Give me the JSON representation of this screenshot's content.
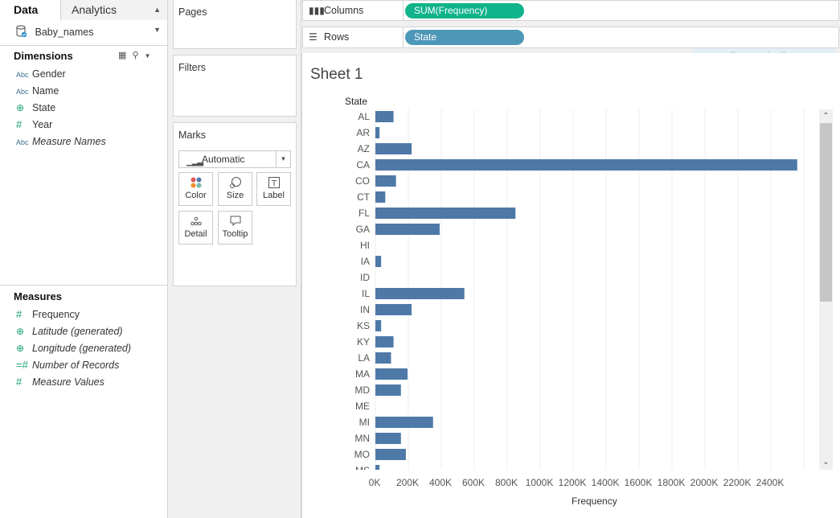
{
  "left_pane": {
    "tabs": {
      "data": "Data",
      "analytics": "Analytics"
    },
    "datasource": "Baby_names",
    "dimensions_title": "Dimensions",
    "dimensions": [
      {
        "type": "Abc",
        "label": "Gender",
        "italic": false
      },
      {
        "type": "Abc",
        "label": "Name",
        "italic": false
      },
      {
        "type": "globe",
        "label": "State",
        "italic": false
      },
      {
        "type": "#",
        "label": "Year",
        "italic": false
      },
      {
        "type": "Abc",
        "label": "Measure Names",
        "italic": true
      }
    ],
    "measures_title": "Measures",
    "measures": [
      {
        "type": "#",
        "label": "Frequency",
        "italic": false
      },
      {
        "type": "globe",
        "label": "Latitude (generated)",
        "italic": true
      },
      {
        "type": "globe",
        "label": "Longitude (generated)",
        "italic": true
      },
      {
        "type": "=#",
        "label": "Number of Records",
        "italic": true
      },
      {
        "type": "#",
        "label": "Measure Values",
        "italic": true
      }
    ]
  },
  "cards": {
    "pages": "Pages",
    "filters": "Filters",
    "marks": "Marks",
    "mark_type": "Automatic",
    "buttons": {
      "color": "Color",
      "size": "Size",
      "label": "Label",
      "detail": "Detail",
      "tooltip": "Tooltip"
    }
  },
  "shelves": {
    "columns_label": "Columns",
    "columns_pill": "SUM(Frequency)",
    "rows_label": "Rows",
    "rows_pill": "State"
  },
  "snip_overlay": "Rectangular Snip",
  "sheet": {
    "title": "Sheet 1"
  },
  "colors": {
    "bar": "#4e79a7",
    "columns_pill": "#10b38a",
    "rows_pill": "#4d97b8"
  },
  "chart_data": {
    "type": "bar",
    "orientation": "horizontal",
    "row_header": "State",
    "xlabel": "Frequency",
    "xlim": [
      0,
      2600000
    ],
    "x_ticks": [
      0,
      200000,
      400000,
      600000,
      800000,
      1000000,
      1200000,
      1400000,
      1600000,
      1800000,
      2000000,
      2200000,
      2400000
    ],
    "x_tick_labels": [
      "0K",
      "200K",
      "400K",
      "600K",
      "800K",
      "1000K",
      "1200K",
      "1400K",
      "1600K",
      "1800K",
      "2000K",
      "2200K",
      "2400K"
    ],
    "grid": true,
    "categories": [
      "AL",
      "AR",
      "AZ",
      "CA",
      "CO",
      "CT",
      "FL",
      "GA",
      "HI",
      "IA",
      "ID",
      "IL",
      "IN",
      "KS",
      "KY",
      "LA",
      "MA",
      "MD",
      "ME",
      "MI",
      "MN",
      "MO",
      "MS"
    ],
    "values": [
      110000,
      25000,
      220000,
      2560000,
      125000,
      60000,
      850000,
      390000,
      0,
      35000,
      0,
      540000,
      220000,
      35000,
      110000,
      95000,
      195000,
      155000,
      0,
      350000,
      155000,
      185000,
      25000
    ]
  }
}
